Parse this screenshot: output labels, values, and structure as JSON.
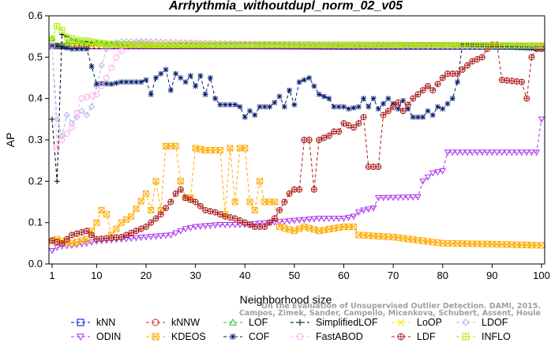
{
  "chart_data": {
    "type": "line",
    "title": "Arrhythmia_withoutdupl_norm_02_v05",
    "xlabel": "Neighborhood size",
    "ylabel": "AP",
    "xlim": [
      1,
      100
    ],
    "ylim": [
      0,
      0.6
    ],
    "x_ticks": [
      "1",
      "10",
      "20",
      "30",
      "40",
      "50",
      "60",
      "70",
      "80",
      "90",
      "100"
    ],
    "y_ticks": [
      "0.0",
      "0.1",
      "0.2",
      "0.3",
      "0.4",
      "0.5",
      "0.6"
    ],
    "grid": false,
    "legend_position": "bottom",
    "credit": [
      "Campos, Zimek, Sander, Campello, Micenkova, Schubert, Assent, Houle",
      "On the Evaluation of Unsupervised Outlier Detection. DAMI, 2015."
    ],
    "series": [
      {
        "name": "kNN",
        "color": "#0000ee",
        "marker": "square",
        "points": [
          [
            1,
            0.527
          ],
          [
            2,
            0.527
          ],
          [
            3,
            0.527
          ],
          [
            5,
            0.527
          ],
          [
            10,
            0.527
          ],
          [
            20,
            0.527
          ],
          [
            40,
            0.527
          ],
          [
            60,
            0.526
          ],
          [
            80,
            0.526
          ],
          [
            100,
            0.526
          ]
        ]
      },
      {
        "name": "kNNW",
        "color": "#dd2222",
        "marker": "circle",
        "points": [
          [
            1,
            0.527
          ],
          [
            2,
            0.527
          ],
          [
            5,
            0.527
          ],
          [
            10,
            0.527
          ],
          [
            30,
            0.527
          ],
          [
            60,
            0.527
          ],
          [
            100,
            0.527
          ]
        ]
      },
      {
        "name": "LOF",
        "color": "#22cc22",
        "marker": "triangle-up",
        "points": [
          [
            1,
            0.545
          ],
          [
            2,
            0.527
          ],
          [
            3,
            0.53
          ],
          [
            4,
            0.535
          ],
          [
            5,
            0.54
          ],
          [
            6,
            0.538
          ],
          [
            8,
            0.535
          ],
          [
            10,
            0.535
          ],
          [
            15,
            0.53
          ],
          [
            30,
            0.528
          ],
          [
            60,
            0.528
          ],
          [
            100,
            0.528
          ]
        ]
      },
      {
        "name": "SimplifiedLOF",
        "color": "#000000",
        "marker": "plus",
        "points": [
          [
            1,
            0.35
          ],
          [
            2,
            0.2
          ],
          [
            3,
            0.555
          ],
          [
            4,
            0.55
          ],
          [
            5,
            0.545
          ],
          [
            6,
            0.54
          ],
          [
            7,
            0.54
          ],
          [
            8,
            0.538
          ],
          [
            9,
            0.535
          ],
          [
            10,
            0.535
          ],
          [
            12,
            0.53
          ],
          [
            20,
            0.528
          ],
          [
            60,
            0.527
          ],
          [
            100,
            0.527
          ]
        ]
      },
      {
        "name": "LoOP",
        "color": "#eeee00",
        "marker": "x",
        "points": [
          [
            1,
            0.527
          ],
          [
            2,
            0.528
          ],
          [
            5,
            0.53
          ],
          [
            10,
            0.53
          ],
          [
            20,
            0.528
          ],
          [
            60,
            0.528
          ],
          [
            100,
            0.528
          ]
        ]
      },
      {
        "name": "LDOF",
        "color": "#b0b0ee",
        "marker": "diamond",
        "points": [
          [
            1,
            0.527
          ],
          [
            2,
            0.35
          ],
          [
            3,
            0.31
          ],
          [
            4,
            0.36
          ],
          [
            5,
            0.34
          ],
          [
            6,
            0.355
          ],
          [
            7,
            0.37
          ],
          [
            8,
            0.36
          ],
          [
            9,
            0.38
          ],
          [
            10,
            0.43
          ],
          [
            11,
            0.48
          ],
          [
            12,
            0.52
          ],
          [
            13,
            0.533
          ],
          [
            15,
            0.538
          ],
          [
            20,
            0.538
          ],
          [
            30,
            0.535
          ],
          [
            40,
            0.532
          ],
          [
            50,
            0.53
          ],
          [
            60,
            0.528
          ],
          [
            80,
            0.527
          ],
          [
            100,
            0.526
          ]
        ]
      },
      {
        "name": "ODIN",
        "color": "#aa33ee",
        "marker": "triangle-down",
        "points": [
          [
            1,
            0.032
          ],
          [
            2,
            0.04
          ],
          [
            3,
            0.043
          ],
          [
            5,
            0.045
          ],
          [
            8,
            0.05
          ],
          [
            10,
            0.055
          ],
          [
            15,
            0.06
          ],
          [
            20,
            0.065
          ],
          [
            25,
            0.07
          ],
          [
            28,
            0.085
          ],
          [
            30,
            0.09
          ],
          [
            35,
            0.095
          ],
          [
            40,
            0.095
          ],
          [
            45,
            0.1
          ],
          [
            50,
            0.105
          ],
          [
            55,
            0.11
          ],
          [
            60,
            0.11
          ],
          [
            62,
            0.115
          ],
          [
            63,
            0.125
          ],
          [
            64,
            0.13
          ],
          [
            66,
            0.135
          ],
          [
            67,
            0.16
          ],
          [
            75,
            0.162
          ],
          [
            76,
            0.2
          ],
          [
            78,
            0.22
          ],
          [
            80,
            0.225
          ],
          [
            81,
            0.27
          ],
          [
            99,
            0.27
          ],
          [
            100,
            0.35
          ]
        ]
      },
      {
        "name": "KDEOS",
        "color": "#ffaa00",
        "marker": "square-x",
        "points": [
          [
            1,
            0.055
          ],
          [
            2,
            0.06
          ],
          [
            3,
            0.055
          ],
          [
            5,
            0.05
          ],
          [
            8,
            0.06
          ],
          [
            10,
            0.1
          ],
          [
            11,
            0.13
          ],
          [
            12,
            0.12
          ],
          [
            13,
            0.07
          ],
          [
            15,
            0.1
          ],
          [
            17,
            0.115
          ],
          [
            20,
            0.17
          ],
          [
            21,
            0.13
          ],
          [
            22,
            0.2
          ],
          [
            23,
            0.13
          ],
          [
            24,
            0.285
          ],
          [
            26,
            0.285
          ],
          [
            27,
            0.2
          ],
          [
            28,
            0.16
          ],
          [
            29,
            0.16
          ],
          [
            30,
            0.28
          ],
          [
            32,
            0.275
          ],
          [
            35,
            0.275
          ],
          [
            36,
            0.12
          ],
          [
            37,
            0.28
          ],
          [
            38,
            0.15
          ],
          [
            39,
            0.28
          ],
          [
            40,
            0.28
          ],
          [
            41,
            0.15
          ],
          [
            42,
            0.13
          ],
          [
            43,
            0.2
          ],
          [
            44,
            0.15
          ],
          [
            46,
            0.15
          ],
          [
            47,
            0.09
          ],
          [
            50,
            0.08
          ],
          [
            52,
            0.09
          ],
          [
            55,
            0.08
          ],
          [
            60,
            0.09
          ],
          [
            62,
            0.09
          ],
          [
            63,
            0.07
          ],
          [
            70,
            0.065
          ],
          [
            80,
            0.05
          ],
          [
            90,
            0.048
          ],
          [
            100,
            0.045
          ]
        ]
      },
      {
        "name": "COF",
        "color": "#001a6e",
        "marker": "asterisk",
        "points": [
          [
            1,
            0.527
          ],
          [
            2,
            0.527
          ],
          [
            5,
            0.52
          ],
          [
            8,
            0.52
          ],
          [
            10,
            0.435
          ],
          [
            11,
            0.436
          ],
          [
            13,
            0.435
          ],
          [
            15,
            0.44
          ],
          [
            17,
            0.44
          ],
          [
            19,
            0.44
          ],
          [
            20,
            0.445
          ],
          [
            21,
            0.41
          ],
          [
            22,
            0.45
          ],
          [
            23,
            0.46
          ],
          [
            24,
            0.47
          ],
          [
            25,
            0.42
          ],
          [
            26,
            0.46
          ],
          [
            27,
            0.45
          ],
          [
            28,
            0.44
          ],
          [
            29,
            0.455
          ],
          [
            30,
            0.43
          ],
          [
            31,
            0.455
          ],
          [
            32,
            0.41
          ],
          [
            33,
            0.45
          ],
          [
            34,
            0.4
          ],
          [
            35,
            0.385
          ],
          [
            38,
            0.385
          ],
          [
            39,
            0.38
          ],
          [
            40,
            0.355
          ],
          [
            41,
            0.37
          ],
          [
            42,
            0.36
          ],
          [
            43,
            0.38
          ],
          [
            45,
            0.38
          ],
          [
            46,
            0.39
          ],
          [
            47,
            0.405
          ],
          [
            48,
            0.38
          ],
          [
            49,
            0.42
          ],
          [
            50,
            0.385
          ],
          [
            51,
            0.44
          ],
          [
            53,
            0.45
          ],
          [
            55,
            0.41
          ],
          [
            57,
            0.4
          ],
          [
            58,
            0.38
          ],
          [
            60,
            0.38
          ],
          [
            61,
            0.375
          ],
          [
            63,
            0.38
          ],
          [
            64,
            0.4
          ],
          [
            65,
            0.38
          ],
          [
            66,
            0.4
          ],
          [
            67,
            0.375
          ],
          [
            69,
            0.4
          ],
          [
            71,
            0.375
          ],
          [
            72,
            0.395
          ],
          [
            74,
            0.355
          ],
          [
            76,
            0.355
          ],
          [
            77,
            0.37
          ],
          [
            78,
            0.36
          ],
          [
            79,
            0.38
          ],
          [
            80,
            0.375
          ],
          [
            82,
            0.4
          ],
          [
            83,
            0.44
          ],
          [
            84,
            0.53
          ],
          [
            100,
            0.52
          ]
        ]
      },
      {
        "name": "FastABOD",
        "color": "#ffaaee",
        "marker": "circle-open",
        "points": [
          [
            1,
            0.527
          ],
          [
            2,
            0.28
          ],
          [
            3,
            0.3
          ],
          [
            5,
            0.33
          ],
          [
            7,
            0.4
          ],
          [
            10,
            0.41
          ],
          [
            12,
            0.45
          ],
          [
            14,
            0.5
          ],
          [
            16,
            0.53
          ],
          [
            20,
            0.535
          ],
          [
            40,
            0.532
          ],
          [
            70,
            0.53
          ],
          [
            100,
            0.528
          ]
        ]
      },
      {
        "name": "LDF",
        "color": "#aa1a1a",
        "marker": "circle-plus",
        "points": [
          [
            1,
            0.057
          ],
          [
            3,
            0.05
          ],
          [
            5,
            0.07
          ],
          [
            8,
            0.08
          ],
          [
            10,
            0.06
          ],
          [
            15,
            0.065
          ],
          [
            20,
            0.09
          ],
          [
            22,
            0.11
          ],
          [
            23,
            0.12
          ],
          [
            25,
            0.15
          ],
          [
            26,
            0.17
          ],
          [
            27,
            0.18
          ],
          [
            28,
            0.16
          ],
          [
            30,
            0.15
          ],
          [
            32,
            0.13
          ],
          [
            34,
            0.125
          ],
          [
            36,
            0.115
          ],
          [
            38,
            0.11
          ],
          [
            40,
            0.1
          ],
          [
            42,
            0.09
          ],
          [
            44,
            0.09
          ],
          [
            46,
            0.11
          ],
          [
            47,
            0.13
          ],
          [
            48,
            0.15
          ],
          [
            49,
            0.17
          ],
          [
            50,
            0.18
          ],
          [
            51,
            0.18
          ],
          [
            52,
            0.3
          ],
          [
            53,
            0.3
          ],
          [
            54,
            0.18
          ],
          [
            55,
            0.3
          ],
          [
            57,
            0.31
          ],
          [
            58,
            0.32
          ],
          [
            59,
            0.32
          ],
          [
            60,
            0.34
          ],
          [
            62,
            0.33
          ],
          [
            63,
            0.34
          ],
          [
            64,
            0.355
          ],
          [
            65,
            0.235
          ],
          [
            66,
            0.235
          ],
          [
            67,
            0.235
          ],
          [
            68,
            0.36
          ],
          [
            70,
            0.38
          ],
          [
            71,
            0.39
          ],
          [
            72,
            0.37
          ],
          [
            74,
            0.4
          ],
          [
            75,
            0.41
          ],
          [
            77,
            0.43
          ],
          [
            78,
            0.42
          ],
          [
            80,
            0.45
          ],
          [
            81,
            0.46
          ],
          [
            83,
            0.46
          ],
          [
            84,
            0.47
          ],
          [
            85,
            0.48
          ],
          [
            86,
            0.49
          ],
          [
            88,
            0.5
          ],
          [
            89,
            0.52
          ],
          [
            90,
            0.53
          ],
          [
            91,
            0.53
          ],
          [
            92,
            0.445
          ],
          [
            96,
            0.44
          ],
          [
            97,
            0.4
          ],
          [
            98,
            0.5
          ],
          [
            99,
            0.52
          ],
          [
            100,
            0.52
          ]
        ]
      },
      {
        "name": "INFLO",
        "color": "#aaee00",
        "marker": "square-plus",
        "points": [
          [
            1,
            0.545
          ],
          [
            2,
            0.575
          ],
          [
            3,
            0.565
          ],
          [
            4,
            0.548
          ],
          [
            5,
            0.545
          ],
          [
            6,
            0.54
          ],
          [
            8,
            0.54
          ],
          [
            10,
            0.535
          ],
          [
            12,
            0.532
          ],
          [
            20,
            0.53
          ],
          [
            60,
            0.53
          ],
          [
            100,
            0.528
          ]
        ]
      }
    ]
  }
}
